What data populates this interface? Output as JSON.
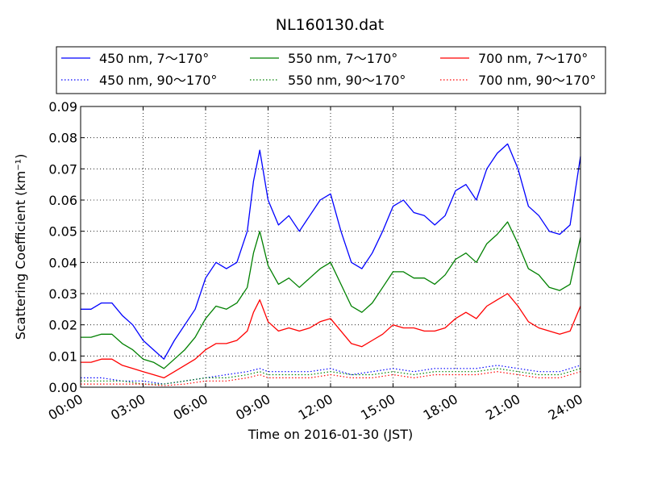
{
  "chart_data": {
    "type": "line",
    "title": "NL160130.dat",
    "xlabel": "Time on 2016-01-30 (JST)",
    "ylabel": "Scattering Coefficient (km⁻¹)",
    "xlim": [
      0,
      24
    ],
    "ylim": [
      0,
      0.09
    ],
    "x_ticks": [
      0,
      3,
      6,
      9,
      12,
      15,
      18,
      21,
      24
    ],
    "x_tick_labels": [
      "00:00",
      "03:00",
      "06:00",
      "09:00",
      "12:00",
      "15:00",
      "18:00",
      "21:00",
      "24:00"
    ],
    "y_ticks": [
      0,
      0.01,
      0.02,
      0.03,
      0.04,
      0.05,
      0.06,
      0.07,
      0.08,
      0.09
    ],
    "y_tick_labels": [
      "0.00",
      "0.01",
      "0.02",
      "0.03",
      "0.04",
      "0.05",
      "0.06",
      "0.07",
      "0.08",
      "0.09"
    ],
    "grid": true,
    "legend": {
      "placement": "top",
      "entries": [
        {
          "label": "450 nm, 7～170°",
          "color": "#0000ff",
          "style": "solid"
        },
        {
          "label": "550 nm, 7～170°",
          "color": "#008000",
          "style": "solid"
        },
        {
          "label": "700 nm, 7～170°",
          "color": "#ff0000",
          "style": "solid"
        },
        {
          "label": "450 nm, 90～170°",
          "color": "#0000ff",
          "style": "dotted"
        },
        {
          "label": "550 nm, 90～170°",
          "color": "#008000",
          "style": "dotted"
        },
        {
          "label": "700 nm, 90～170°",
          "color": "#ff0000",
          "style": "dotted"
        }
      ]
    },
    "series": [
      {
        "name": "450 nm, 7～170°",
        "color": "#0000ff",
        "style": "solid",
        "x": [
          0,
          0.5,
          1,
          1.5,
          2,
          2.5,
          3,
          3.5,
          4,
          4.5,
          5,
          5.5,
          6,
          6.5,
          7,
          7.5,
          8,
          8.3,
          8.6,
          9,
          9.5,
          10,
          10.5,
          11,
          11.5,
          12,
          12.5,
          13,
          13.5,
          14,
          14.5,
          15,
          15.5,
          16,
          16.5,
          17,
          17.5,
          18,
          18.5,
          19,
          19.5,
          20,
          20.5,
          21,
          21.5,
          22,
          22.5,
          23,
          23.5,
          24
        ],
        "y": [
          0.025,
          0.025,
          0.027,
          0.027,
          0.023,
          0.02,
          0.015,
          0.012,
          0.009,
          0.015,
          0.02,
          0.025,
          0.035,
          0.04,
          0.038,
          0.04,
          0.05,
          0.066,
          0.076,
          0.06,
          0.052,
          0.055,
          0.05,
          0.055,
          0.06,
          0.062,
          0.05,
          0.04,
          0.038,
          0.043,
          0.05,
          0.058,
          0.06,
          0.056,
          0.055,
          0.052,
          0.055,
          0.063,
          0.065,
          0.06,
          0.07,
          0.075,
          0.078,
          0.07,
          0.058,
          0.055,
          0.05,
          0.049,
          0.052,
          0.074
        ]
      },
      {
        "name": "550 nm, 7～170°",
        "color": "#008000",
        "style": "solid",
        "x": [
          0,
          0.5,
          1,
          1.5,
          2,
          2.5,
          3,
          3.5,
          4,
          4.5,
          5,
          5.5,
          6,
          6.5,
          7,
          7.5,
          8,
          8.3,
          8.6,
          9,
          9.5,
          10,
          10.5,
          11,
          11.5,
          12,
          12.5,
          13,
          13.5,
          14,
          14.5,
          15,
          15.5,
          16,
          16.5,
          17,
          17.5,
          18,
          18.5,
          19,
          19.5,
          20,
          20.5,
          21,
          21.5,
          22,
          22.5,
          23,
          23.5,
          24
        ],
        "y": [
          0.016,
          0.016,
          0.017,
          0.017,
          0.014,
          0.012,
          0.009,
          0.008,
          0.006,
          0.009,
          0.012,
          0.016,
          0.022,
          0.026,
          0.025,
          0.027,
          0.032,
          0.043,
          0.05,
          0.039,
          0.033,
          0.035,
          0.032,
          0.035,
          0.038,
          0.04,
          0.033,
          0.026,
          0.024,
          0.027,
          0.032,
          0.037,
          0.037,
          0.035,
          0.035,
          0.033,
          0.036,
          0.041,
          0.043,
          0.04,
          0.046,
          0.049,
          0.053,
          0.046,
          0.038,
          0.036,
          0.032,
          0.031,
          0.033,
          0.048
        ]
      },
      {
        "name": "700 nm, 7～170°",
        "color": "#ff0000",
        "style": "solid",
        "x": [
          0,
          0.5,
          1,
          1.5,
          2,
          2.5,
          3,
          3.5,
          4,
          4.5,
          5,
          5.5,
          6,
          6.5,
          7,
          7.5,
          8,
          8.3,
          8.6,
          9,
          9.5,
          10,
          10.5,
          11,
          11.5,
          12,
          12.5,
          13,
          13.5,
          14,
          14.5,
          15,
          15.5,
          16,
          16.5,
          17,
          17.5,
          18,
          18.5,
          19,
          19.5,
          20,
          20.5,
          21,
          21.5,
          22,
          22.5,
          23,
          23.5,
          24
        ],
        "y": [
          0.008,
          0.008,
          0.009,
          0.009,
          0.007,
          0.006,
          0.005,
          0.004,
          0.003,
          0.005,
          0.007,
          0.009,
          0.012,
          0.014,
          0.014,
          0.015,
          0.018,
          0.024,
          0.028,
          0.021,
          0.018,
          0.019,
          0.018,
          0.019,
          0.021,
          0.022,
          0.018,
          0.014,
          0.013,
          0.015,
          0.017,
          0.02,
          0.019,
          0.019,
          0.018,
          0.018,
          0.019,
          0.022,
          0.024,
          0.022,
          0.026,
          0.028,
          0.03,
          0.026,
          0.021,
          0.019,
          0.018,
          0.017,
          0.018,
          0.026
        ]
      },
      {
        "name": "450 nm, 90～170°",
        "color": "#0000ff",
        "style": "dotted",
        "x": [
          0,
          1,
          2,
          3,
          4,
          5,
          6,
          7,
          8,
          8.6,
          9,
          10,
          11,
          12,
          13,
          14,
          15,
          16,
          17,
          18,
          19,
          20,
          21,
          22,
          23,
          24
        ],
        "y": [
          0.003,
          0.003,
          0.002,
          0.002,
          0.001,
          0.002,
          0.003,
          0.004,
          0.005,
          0.006,
          0.005,
          0.005,
          0.005,
          0.006,
          0.004,
          0.005,
          0.006,
          0.005,
          0.006,
          0.006,
          0.006,
          0.007,
          0.006,
          0.005,
          0.005,
          0.007
        ]
      },
      {
        "name": "550 nm, 90～170°",
        "color": "#008000",
        "style": "dotted",
        "x": [
          0,
          1,
          2,
          3,
          4,
          5,
          6,
          7,
          8,
          8.6,
          9,
          10,
          11,
          12,
          13,
          14,
          15,
          16,
          17,
          18,
          19,
          20,
          21,
          22,
          23,
          24
        ],
        "y": [
          0.002,
          0.002,
          0.002,
          0.001,
          0.001,
          0.002,
          0.003,
          0.003,
          0.004,
          0.005,
          0.004,
          0.004,
          0.004,
          0.005,
          0.004,
          0.004,
          0.005,
          0.004,
          0.005,
          0.005,
          0.005,
          0.006,
          0.005,
          0.004,
          0.004,
          0.006
        ]
      },
      {
        "name": "700 nm, 90～170°",
        "color": "#ff0000",
        "style": "dotted",
        "x": [
          0,
          1,
          2,
          3,
          4,
          5,
          6,
          7,
          8,
          8.6,
          9,
          10,
          11,
          12,
          13,
          14,
          15,
          16,
          17,
          18,
          19,
          20,
          21,
          22,
          23,
          24
        ],
        "y": [
          0.001,
          0.001,
          0.001,
          0.001,
          0.0005,
          0.001,
          0.002,
          0.002,
          0.003,
          0.004,
          0.003,
          0.003,
          0.003,
          0.004,
          0.003,
          0.003,
          0.004,
          0.003,
          0.004,
          0.004,
          0.004,
          0.005,
          0.004,
          0.003,
          0.003,
          0.005
        ]
      }
    ]
  }
}
